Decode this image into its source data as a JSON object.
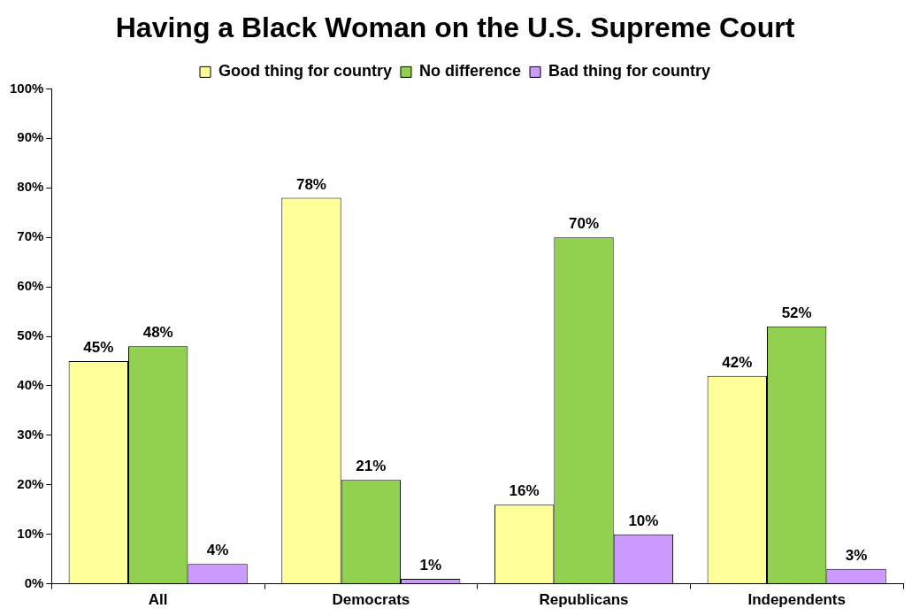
{
  "chart_data": {
    "type": "bar",
    "title": "Having a Black Woman on the U.S. Supreme Court",
    "categories": [
      "All",
      "Democrats",
      "Republicans",
      "Independents"
    ],
    "series": [
      {
        "name": "Good thing for country",
        "color": "#ffff99",
        "values": [
          45,
          78,
          16,
          42
        ]
      },
      {
        "name": "No difference",
        "color": "#92d050",
        "values": [
          48,
          21,
          70,
          52
        ]
      },
      {
        "name": "Bad thing for country",
        "color": "#cc99ff",
        "values": [
          4,
          1,
          10,
          3
        ]
      }
    ],
    "ylim": [
      0,
      100
    ],
    "yticks": [
      {
        "value": 0,
        "label": "0%"
      },
      {
        "value": 10,
        "label": "10%"
      },
      {
        "value": 20,
        "label": "20%"
      },
      {
        "value": 30,
        "label": "30%"
      },
      {
        "value": 40,
        "label": "40%"
      },
      {
        "value": 50,
        "label": "50%"
      },
      {
        "value": 60,
        "label": "60%"
      },
      {
        "value": 70,
        "label": "70%"
      },
      {
        "value": 80,
        "label": "80%"
      },
      {
        "value": 90,
        "label": "90%"
      },
      {
        "value": 100,
        "label": "100%"
      }
    ],
    "value_labels": [
      [
        "45%",
        "78%",
        "16%",
        "42%"
      ],
      [
        "48%",
        "21%",
        "70%",
        "52%"
      ],
      [
        "4%",
        "1%",
        "10%",
        "3%"
      ]
    ],
    "grid": false,
    "legend": "top"
  }
}
